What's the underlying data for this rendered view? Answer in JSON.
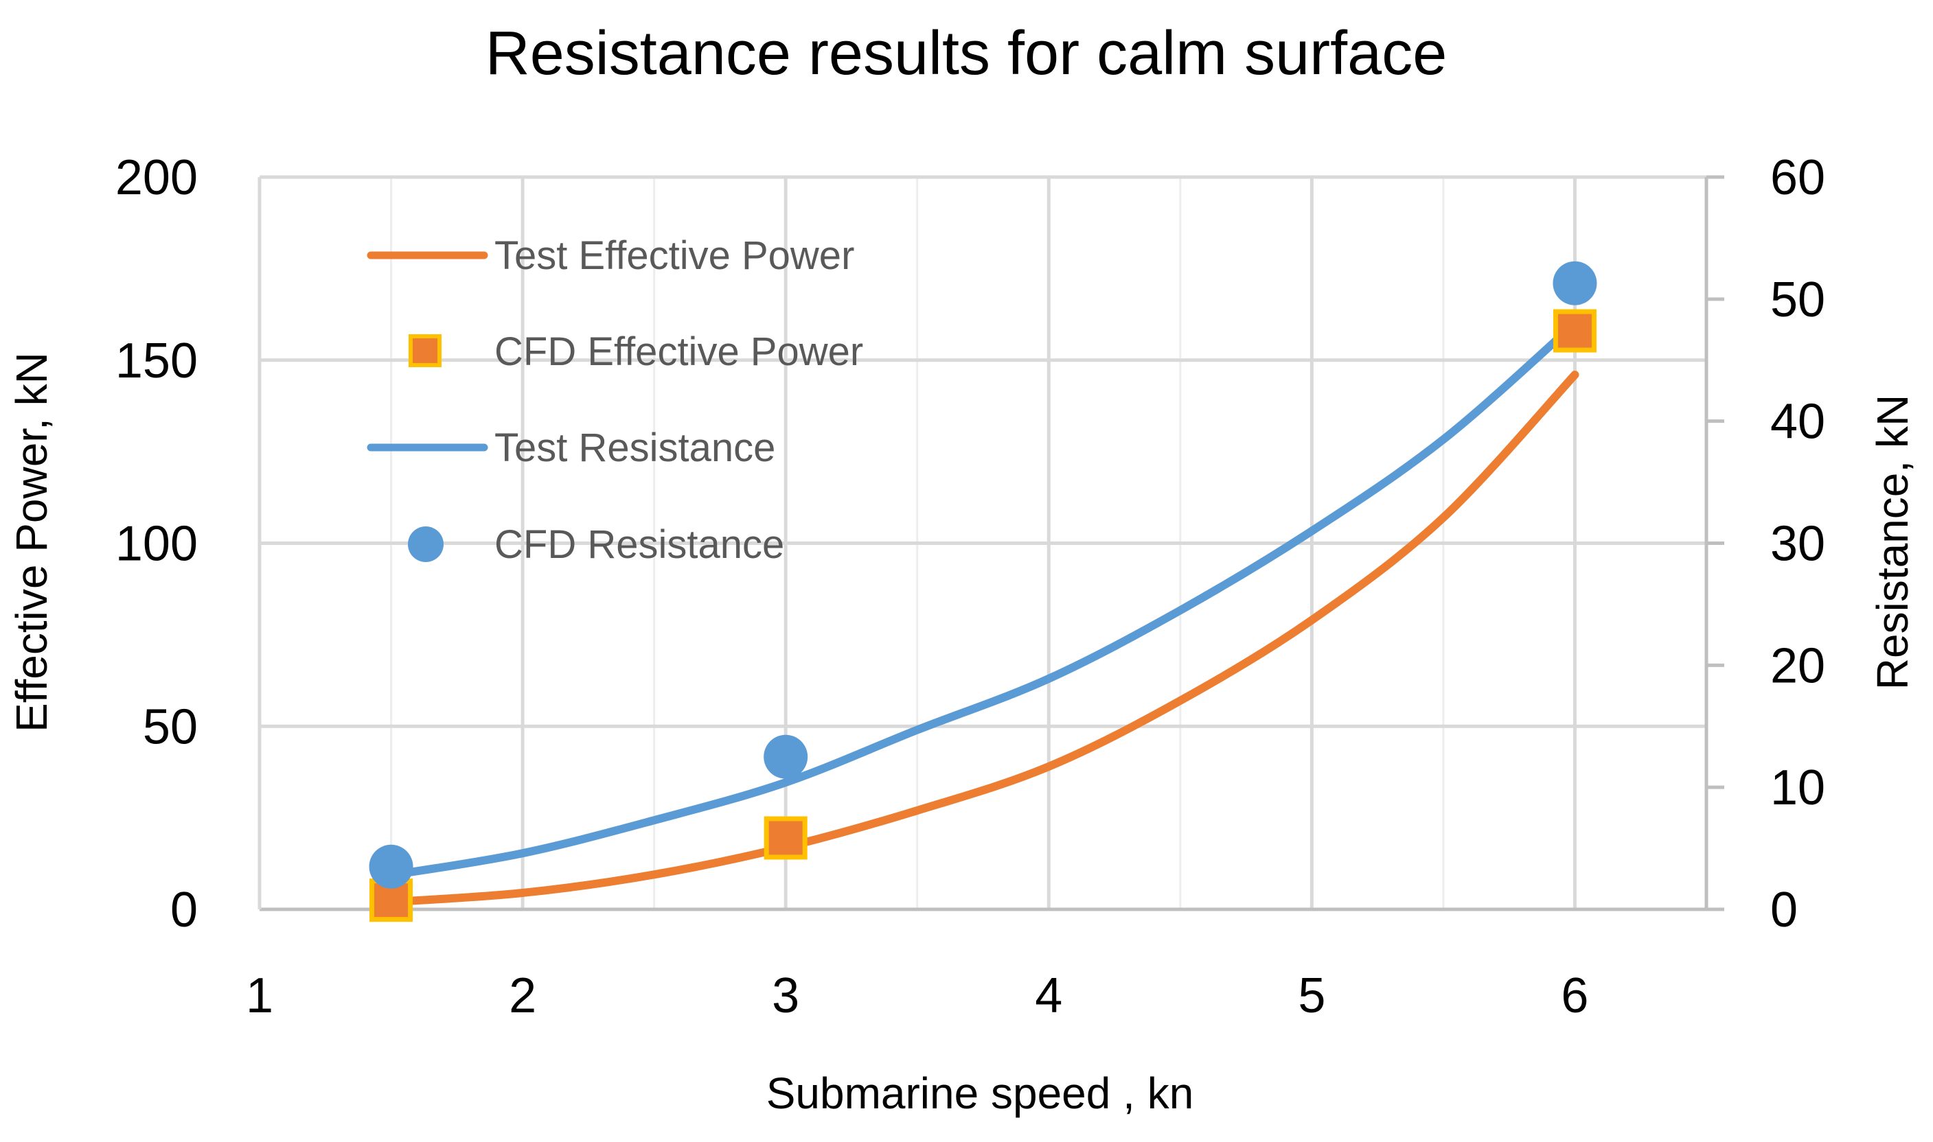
{
  "chart_data": {
    "type": "line",
    "title": "Resistance results for calm surface",
    "xlabel": "Submarine speed , kn",
    "ylabel_left": "Effective Power, kN",
    "ylabel_right": "Resistance, kN",
    "xlim": [
      1,
      6.5
    ],
    "ylim_left": [
      0,
      200
    ],
    "ylim_right": [
      0,
      60
    ],
    "x_ticks": [
      "1",
      "2",
      "3",
      "4",
      "5",
      "6"
    ],
    "y_left_ticks": [
      "0",
      "50",
      "100",
      "150",
      "200"
    ],
    "y_right_ticks": [
      "0",
      "10",
      "20",
      "30",
      "40",
      "50",
      "60"
    ],
    "grid": true,
    "legend_position": "top-left",
    "series": [
      {
        "name": "Test Effective Power",
        "kind": "line",
        "axis": "left",
        "color": "#ED7D31",
        "x": [
          1.5,
          2.0,
          2.5,
          3.0,
          3.5,
          4.0,
          4.5,
          5.0,
          5.5,
          6.0
        ],
        "y": [
          2,
          4.5,
          9.5,
          17,
          27,
          39,
          57,
          79,
          107,
          146
        ]
      },
      {
        "name": "CFD Effective Power",
        "kind": "marker-square",
        "axis": "left",
        "color": "#ED7D31",
        "edge_color": "#FFC000",
        "x": [
          1.5,
          3.0,
          6.0
        ],
        "y": [
          2.5,
          19.5,
          158
        ]
      },
      {
        "name": "Test Resistance",
        "kind": "line",
        "axis": "right",
        "color": "#5B9BD5",
        "x": [
          1.5,
          2.0,
          2.5,
          3.0,
          3.5,
          4.0,
          4.5,
          5.0,
          5.5,
          6.0
        ],
        "y": [
          2.8,
          4.6,
          7.3,
          10.4,
          14.7,
          18.9,
          24.5,
          31,
          38.5,
          48
        ]
      },
      {
        "name": "CFD Resistance",
        "kind": "marker-circle",
        "axis": "right",
        "color": "#5B9BD5",
        "x": [
          1.5,
          3.0,
          6.0
        ],
        "y": [
          3.5,
          12.5,
          51.3
        ]
      }
    ]
  }
}
